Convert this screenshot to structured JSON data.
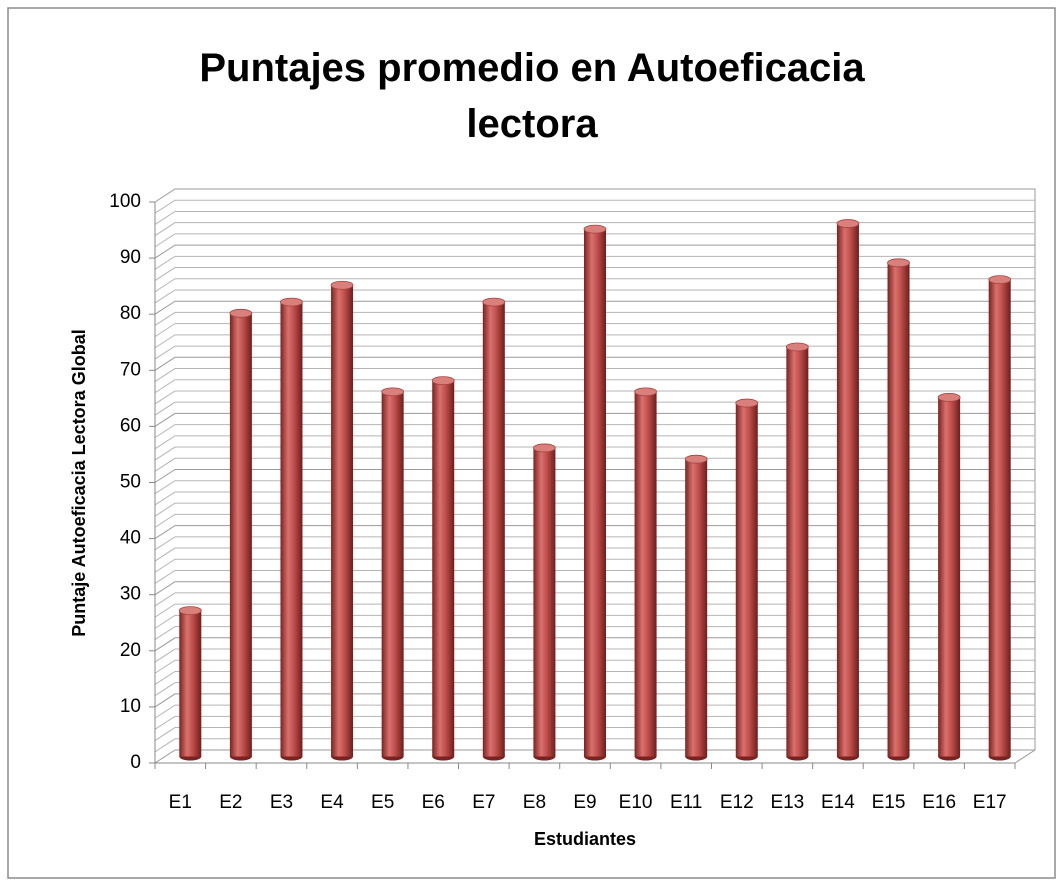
{
  "chart_data": {
    "type": "bar",
    "title": "Puntajes promedio en Autoeficacia lectora",
    "x_label": "Estudiantes",
    "y_label": "Puntaje Autoeficacia Lectora Global",
    "categories": [
      "E1",
      "E2",
      "E3",
      "E4",
      "E5",
      "E6",
      "E7",
      "E8",
      "E9",
      "E10",
      "E11",
      "E12",
      "E13",
      "E14",
      "E15",
      "E16",
      "E17"
    ],
    "values": [
      26,
      79,
      81,
      84,
      65,
      67,
      81,
      55,
      94,
      65,
      53,
      63,
      73,
      95,
      88,
      64,
      85
    ],
    "color": "#c0504d",
    "ylim": [
      0,
      100
    ],
    "yticks": [
      0,
      10,
      20,
      30,
      40,
      50,
      60,
      70,
      80,
      90,
      100
    ],
    "grid": true
  }
}
